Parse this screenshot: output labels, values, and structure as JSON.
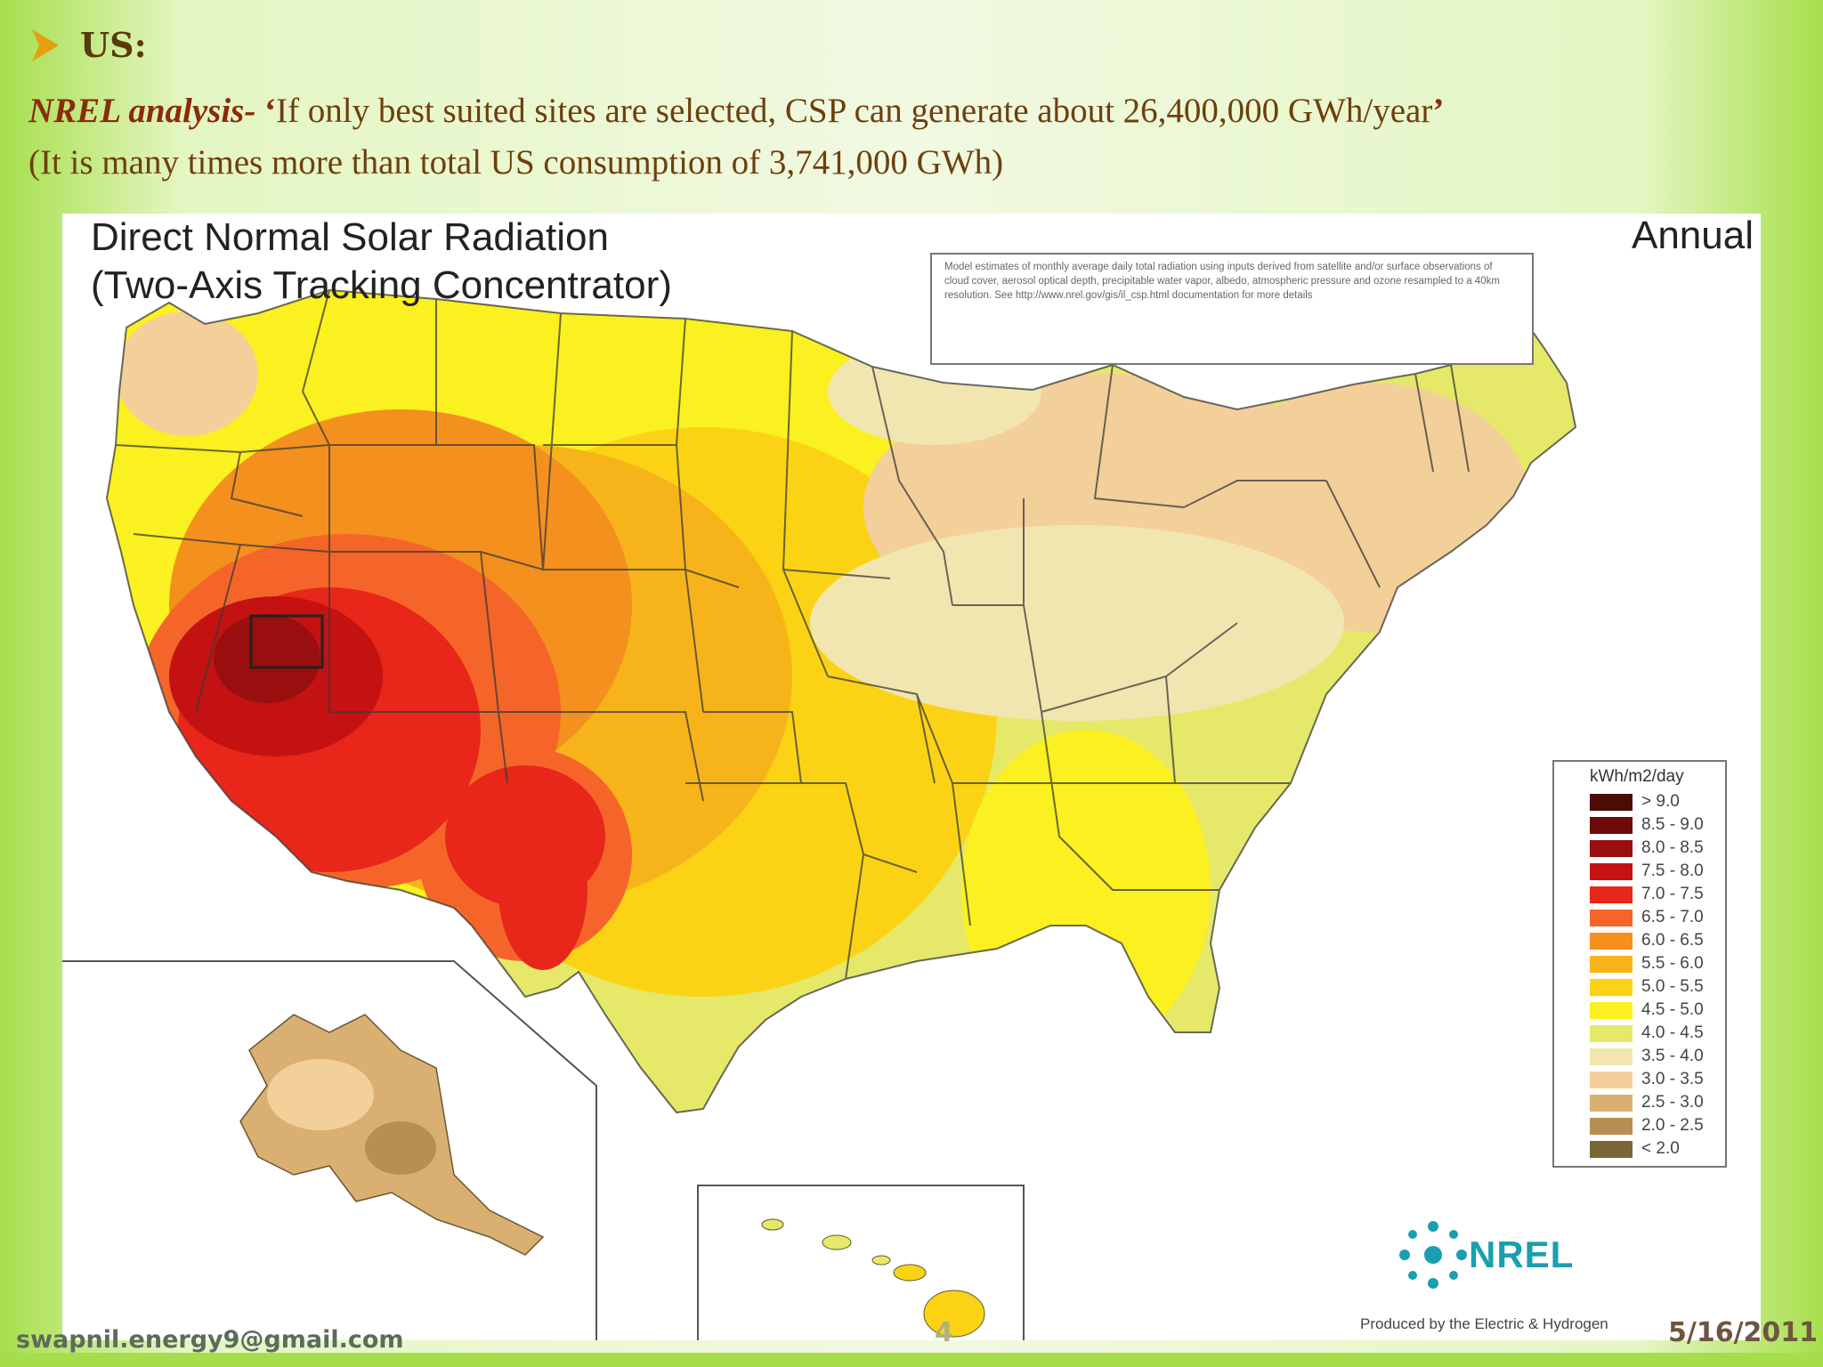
{
  "slide": {
    "heading": "US:",
    "line1_lead": "NREL analysis-",
    "line1_open_quote": " ‘",
    "line1_body": "If only best suited sites are selected, CSP can generate about 26,400,000  GWh/year",
    "line1_close_quote": "’",
    "line2": "(It is many times more than total US consumption of 3,741,000 GWh)"
  },
  "map": {
    "title_line1": "Direct Normal Solar Radiation",
    "title_line2": "(Two-Axis Tracking Concentrator)",
    "period": "Annual",
    "note": "Model estimates of monthly average daily total radiation using inputs derived from satellite and/or surface observations of cloud cover, aerosol optical depth, precipitable water vapor, albedo, atmospheric pressure and ozone resampled to a 40km resolution. See http://www.nrel.gov/gis/il_csp.html documentation for more details",
    "legend_title": "kWh/m2/day",
    "legend": [
      {
        "label": "> 9.0",
        "color": "#4a0d05"
      },
      {
        "label": "8.5 - 9.0",
        "color": "#6e0a0a"
      },
      {
        "label": "8.0 - 8.5",
        "color": "#990e0e"
      },
      {
        "label": "7.5 - 8.0",
        "color": "#c41212"
      },
      {
        "label": "7.0 - 7.5",
        "color": "#e8261a"
      },
      {
        "label": "6.5 - 7.0",
        "color": "#f5652a"
      },
      {
        "label": "6.0 - 6.5",
        "color": "#f3901e"
      },
      {
        "label": "5.5 - 6.0",
        "color": "#f7b41a"
      },
      {
        "label": "5.0 - 5.5",
        "color": "#fbd314"
      },
      {
        "label": "4.5 - 5.0",
        "color": "#fbf020"
      },
      {
        "label": "4.0 - 4.5",
        "color": "#e6e86a"
      },
      {
        "label": "3.5 - 4.0",
        "color": "#f1e6b0"
      },
      {
        "label": "3.0 - 3.5",
        "color": "#f3cf9a"
      },
      {
        "label": "2.5 - 3.0",
        "color": "#d9b072"
      },
      {
        "label": "2.0 - 2.5",
        "color": "#b88e52"
      },
      {
        "label": "< 2.0",
        "color": "#7a6535"
      }
    ],
    "logo_text": "NREL",
    "credit": "Produced by the Electric & Hydrogen"
  },
  "footer": {
    "email": "swapnil.energy9@gmail.com",
    "page": "4",
    "date": "5/16/2011"
  },
  "colors": {
    "bullet": "#e6a00f",
    "heading": "#5a3a0b",
    "accent": "#8b2b0b",
    "slide_green": "#a6dd4a"
  }
}
